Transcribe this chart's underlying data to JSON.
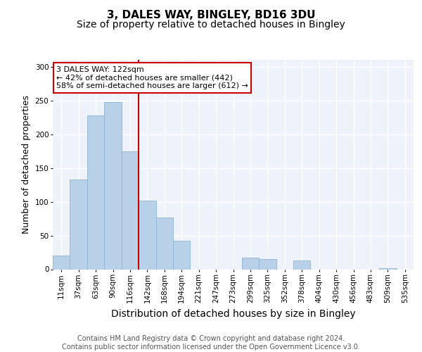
{
  "title1": "3, DALES WAY, BINGLEY, BD16 3DU",
  "title2": "Size of property relative to detached houses in Bingley",
  "xlabel": "Distribution of detached houses by size in Bingley",
  "ylabel": "Number of detached properties",
  "categories": [
    "11sqm",
    "37sqm",
    "63sqm",
    "90sqm",
    "116sqm",
    "142sqm",
    "168sqm",
    "194sqm",
    "221sqm",
    "247sqm",
    "273sqm",
    "299sqm",
    "325sqm",
    "352sqm",
    "378sqm",
    "404sqm",
    "430sqm",
    "456sqm",
    "483sqm",
    "509sqm",
    "535sqm"
  ],
  "values": [
    20,
    133,
    228,
    247,
    175,
    102,
    77,
    42,
    0,
    0,
    0,
    17,
    15,
    0,
    13,
    0,
    0,
    0,
    0,
    2,
    0
  ],
  "bar_color": "#b8d0e8",
  "bar_edge_color": "#90b4d4",
  "vline_color": "#cc0000",
  "vline_pos": 4.5,
  "annotation_text": "3 DALES WAY: 122sqm\n← 42% of detached houses are smaller (442)\n58% of semi-detached houses are larger (612) →",
  "annotation_box_color": "white",
  "annotation_box_edge_color": "#cc0000",
  "footer_text": "Contains HM Land Registry data © Crown copyright and database right 2024.\nContains public sector information licensed under the Open Government Licence v3.0.",
  "ylim": [
    0,
    310
  ],
  "background_color": "#eef2fa",
  "grid_color": "white",
  "title1_fontsize": 11,
  "title2_fontsize": 10,
  "xlabel_fontsize": 10,
  "ylabel_fontsize": 9,
  "tick_fontsize": 7.5,
  "footer_fontsize": 7,
  "ann_fontsize": 8
}
